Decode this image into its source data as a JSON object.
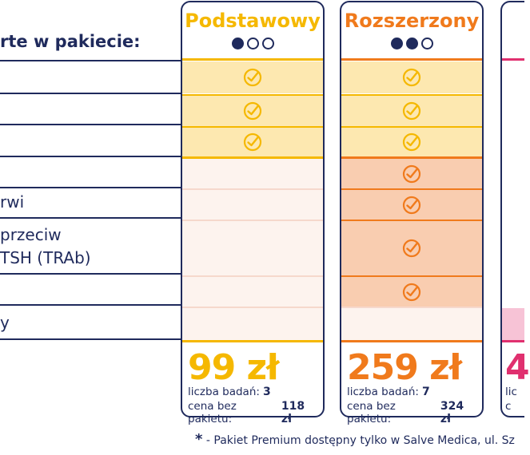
{
  "header_left": "rte w pakiecie:",
  "row_labels": [
    "rwi",
    "przeciw",
    "TSH (TRAb)",
    "y"
  ],
  "columns": [
    {
      "title": "Podstawowy",
      "title_color": "#f5b800",
      "dots_filled": 1,
      "dots_total": 3,
      "price": "99 zł",
      "count_label": "liczba badań:",
      "count_value": "3",
      "noprice_label": "cena bez pakietu:",
      "noprice_value": "118 zł"
    },
    {
      "title": "Rozszerzony",
      "title_color": "#f07a1c",
      "dots_filled": 2,
      "dots_total": 3,
      "price": "259 zł",
      "count_label": "liczba badań:",
      "count_value": "7",
      "noprice_label": "cena bez pakietu:",
      "noprice_value": "324 zł"
    }
  ],
  "premium_partial": {
    "price_fragment": "4",
    "meta_fragment_1": "lic",
    "meta_fragment_2": "c"
  },
  "footnote": {
    "star": "*",
    "text": "- Pakiet Premium dostępny tylko w Salve Medica, ul. Sz"
  },
  "colors": {
    "navy": "#1f2a5c",
    "yellow_check": "#f5b800",
    "orange_check": "#f07a1c",
    "pink_accent": "#e0306f"
  }
}
